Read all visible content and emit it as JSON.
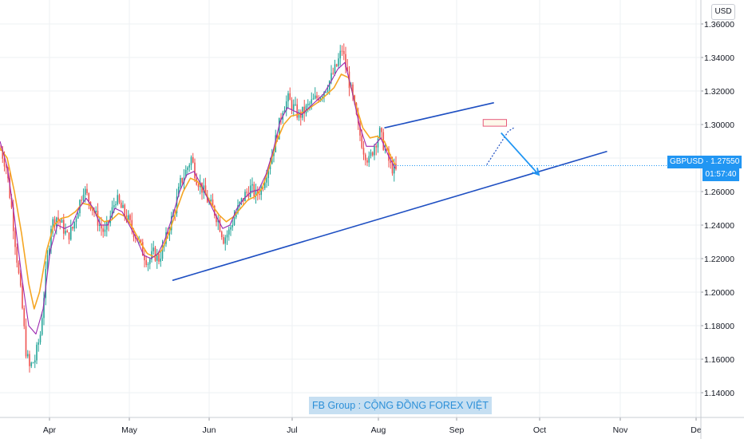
{
  "currency_button": "USD",
  "symbol_label": "GBPUSD · 1.27550",
  "countdown": "01:57:40",
  "banner": "FB Group : CỘNG ĐỒNG FOREX VIỆT",
  "colors": {
    "candle_up": "#26a69a",
    "candle_down": "#ef5350",
    "ma_fast": "#9c27b0",
    "ma_slow": "#f5a623",
    "trendline": "#1e4fc2",
    "arrow": "#2196f3",
    "price_tag": "#2196f3"
  },
  "chart_data": {
    "type": "candlestick",
    "symbol": "GBPUSD",
    "last_price": 1.2755,
    "ylim": [
      1.13,
      1.37
    ],
    "y_ticks": [
      "1.36000",
      "1.34000",
      "1.32000",
      "1.30000",
      "1.28000",
      "1.26000",
      "1.24000",
      "1.22000",
      "1.20000",
      "1.18000",
      "1.16000",
      "1.14000"
    ],
    "x_ticks": [
      "Apr",
      "May",
      "Jun",
      "Jul",
      "Aug",
      "Sep",
      "Oct",
      "Nov",
      "De"
    ],
    "close_path": [
      [
        0,
        1.285
      ],
      [
        3,
        1.275
      ],
      [
        6,
        1.25
      ],
      [
        9,
        1.22
      ],
      [
        12,
        1.19
      ],
      [
        14,
        1.165
      ],
      [
        16,
        1.155
      ],
      [
        19,
        1.16
      ],
      [
        22,
        1.175
      ],
      [
        25,
        1.21
      ],
      [
        28,
        1.24
      ],
      [
        31,
        1.245
      ],
      [
        34,
        1.24
      ],
      [
        37,
        1.233
      ],
      [
        40,
        1.238
      ],
      [
        43,
        1.25
      ],
      [
        46,
        1.262
      ],
      [
        49,
        1.255
      ],
      [
        52,
        1.248
      ],
      [
        55,
        1.24
      ],
      [
        58,
        1.235
      ],
      [
        61,
        1.245
      ],
      [
        64,
        1.256
      ],
      [
        67,
        1.25
      ],
      [
        70,
        1.245
      ],
      [
        73,
        1.238
      ],
      [
        76,
        1.232
      ],
      [
        79,
        1.224
      ],
      [
        82,
        1.218
      ],
      [
        85,
        1.223
      ],
      [
        88,
        1.22
      ],
      [
        91,
        1.228
      ],
      [
        94,
        1.24
      ],
      [
        97,
        1.25
      ],
      [
        100,
        1.265
      ],
      [
        103,
        1.272
      ],
      [
        106,
        1.28
      ],
      [
        109,
        1.268
      ],
      [
        112,
        1.262
      ],
      [
        115,
        1.255
      ],
      [
        118,
        1.25
      ],
      [
        121,
        1.243
      ],
      [
        124,
        1.232
      ],
      [
        127,
        1.236
      ],
      [
        130,
        1.245
      ],
      [
        133,
        1.252
      ],
      [
        136,
        1.258
      ],
      [
        139,
        1.262
      ],
      [
        142,
        1.258
      ],
      [
        145,
        1.262
      ],
      [
        148,
        1.272
      ],
      [
        151,
        1.282
      ],
      [
        154,
        1.295
      ],
      [
        157,
        1.31
      ],
      [
        160,
        1.315
      ],
      [
        163,
        1.31
      ],
      [
        166,
        1.305
      ],
      [
        169,
        1.308
      ],
      [
        172,
        1.312
      ],
      [
        175,
        1.315
      ],
      [
        178,
        1.318
      ],
      [
        181,
        1.322
      ],
      [
        184,
        1.328
      ],
      [
        187,
        1.335
      ],
      [
        190,
        1.345
      ],
      [
        193,
        1.33
      ],
      [
        196,
        1.315
      ],
      [
        199,
        1.298
      ],
      [
        202,
        1.285
      ],
      [
        205,
        1.278
      ],
      [
        208,
        1.288
      ],
      [
        211,
        1.295
      ],
      [
        214,
        1.285
      ],
      [
        217,
        1.275
      ],
      [
        220,
        1.272
      ]
    ],
    "ma_fast": [
      [
        0,
        1.29
      ],
      [
        4,
        1.275
      ],
      [
        8,
        1.245
      ],
      [
        12,
        1.21
      ],
      [
        16,
        1.18
      ],
      [
        20,
        1.175
      ],
      [
        24,
        1.19
      ],
      [
        28,
        1.225
      ],
      [
        32,
        1.24
      ],
      [
        36,
        1.238
      ],
      [
        40,
        1.24
      ],
      [
        44,
        1.25
      ],
      [
        48,
        1.256
      ],
      [
        52,
        1.25
      ],
      [
        56,
        1.24
      ],
      [
        60,
        1.24
      ],
      [
        64,
        1.25
      ],
      [
        68,
        1.248
      ],
      [
        72,
        1.24
      ],
      [
        76,
        1.232
      ],
      [
        80,
        1.222
      ],
      [
        84,
        1.22
      ],
      [
        88,
        1.223
      ],
      [
        92,
        1.232
      ],
      [
        96,
        1.245
      ],
      [
        100,
        1.26
      ],
      [
        104,
        1.27
      ],
      [
        108,
        1.272
      ],
      [
        112,
        1.264
      ],
      [
        116,
        1.255
      ],
      [
        120,
        1.246
      ],
      [
        124,
        1.238
      ],
      [
        128,
        1.24
      ],
      [
        132,
        1.25
      ],
      [
        136,
        1.256
      ],
      [
        140,
        1.26
      ],
      [
        144,
        1.261
      ],
      [
        148,
        1.27
      ],
      [
        152,
        1.284
      ],
      [
        156,
        1.302
      ],
      [
        160,
        1.31
      ],
      [
        164,
        1.308
      ],
      [
        168,
        1.306
      ],
      [
        172,
        1.31
      ],
      [
        176,
        1.314
      ],
      [
        180,
        1.318
      ],
      [
        184,
        1.325
      ],
      [
        188,
        1.333
      ],
      [
        192,
        1.337
      ],
      [
        196,
        1.32
      ],
      [
        200,
        1.3
      ],
      [
        204,
        1.287
      ],
      [
        208,
        1.287
      ],
      [
        212,
        1.292
      ],
      [
        216,
        1.282
      ],
      [
        220,
        1.274
      ]
    ],
    "ma_slow": [
      [
        0,
        1.286
      ],
      [
        4,
        1.28
      ],
      [
        8,
        1.26
      ],
      [
        12,
        1.235
      ],
      [
        16,
        1.205
      ],
      [
        19,
        1.19
      ],
      [
        22,
        1.2
      ],
      [
        26,
        1.225
      ],
      [
        30,
        1.24
      ],
      [
        34,
        1.244
      ],
      [
        38,
        1.245
      ],
      [
        42,
        1.248
      ],
      [
        46,
        1.253
      ],
      [
        50,
        1.252
      ],
      [
        54,
        1.246
      ],
      [
        58,
        1.242
      ],
      [
        62,
        1.243
      ],
      [
        66,
        1.247
      ],
      [
        70,
        1.245
      ],
      [
        74,
        1.238
      ],
      [
        78,
        1.23
      ],
      [
        82,
        1.223
      ],
      [
        86,
        1.221
      ],
      [
        90,
        1.225
      ],
      [
        94,
        1.235
      ],
      [
        98,
        1.248
      ],
      [
        102,
        1.26
      ],
      [
        106,
        1.268
      ],
      [
        110,
        1.266
      ],
      [
        114,
        1.26
      ],
      [
        118,
        1.252
      ],
      [
        122,
        1.246
      ],
      [
        126,
        1.242
      ],
      [
        130,
        1.245
      ],
      [
        134,
        1.25
      ],
      [
        138,
        1.255
      ],
      [
        142,
        1.257
      ],
      [
        146,
        1.262
      ],
      [
        150,
        1.275
      ],
      [
        154,
        1.29
      ],
      [
        158,
        1.3
      ],
      [
        162,
        1.305
      ],
      [
        166,
        1.306
      ],
      [
        170,
        1.308
      ],
      [
        174,
        1.311
      ],
      [
        178,
        1.314
      ],
      [
        182,
        1.318
      ],
      [
        186,
        1.322
      ],
      [
        190,
        1.33
      ],
      [
        194,
        1.328
      ],
      [
        198,
        1.312
      ],
      [
        202,
        1.298
      ],
      [
        206,
        1.292
      ],
      [
        210,
        1.293
      ],
      [
        214,
        1.29
      ],
      [
        218,
        1.28
      ],
      [
        220,
        1.276
      ]
    ],
    "trendlines": [
      {
        "from": [
          96,
          1.207
        ],
        "to": [
          338,
          1.284
        ],
        "color": "#1e4fc2"
      },
      {
        "from": [
          214,
          1.298
        ],
        "to": [
          275,
          1.313
        ],
        "color": "#1e4fc2"
      }
    ],
    "forecast_arrow": {
      "from": [
        279,
        1.295
      ],
      "to": [
        300,
        1.27
      ]
    },
    "resistance_box": {
      "x0": 269,
      "x1": 282,
      "y0": 1.303,
      "y1": 1.299
    }
  }
}
